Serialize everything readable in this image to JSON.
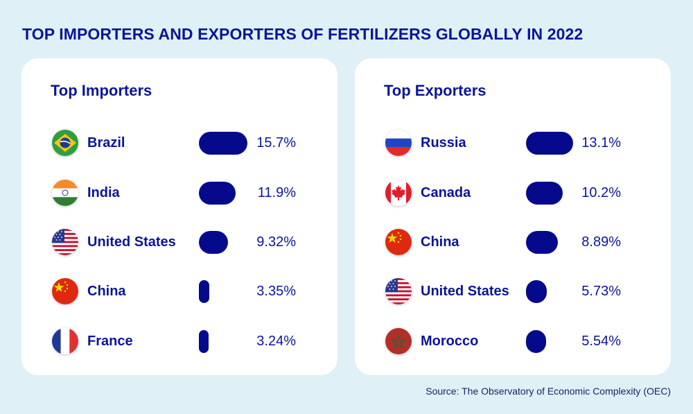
{
  "title": "TOP IMPORTERS AND EXPORTERS OF FERTILIZERS GLOBALLY IN 2022",
  "source": "Source: The Observatory of Economic Complexity (OEC)",
  "colors": {
    "bar": "#050a8c",
    "text": "#0b1499",
    "background": "#dff0f7",
    "card": "#ffffff"
  },
  "chart_data": [
    {
      "type": "bar",
      "title": "Top Importers",
      "categories": [
        "Brazil",
        "India",
        "United States",
        "China",
        "France"
      ],
      "values": [
        15.7,
        11.9,
        9.32,
        3.35,
        3.24
      ],
      "labels": [
        "15.7%",
        "11.9%",
        "9.32%",
        "3.35%",
        "3.24%"
      ],
      "flags": [
        "brazil-flag-icon",
        "india-flag-icon",
        "usa-flag-icon",
        "china-flag-icon",
        "france-flag-icon"
      ]
    },
    {
      "type": "bar",
      "title": "Top Exporters",
      "categories": [
        "Russia",
        "Canada",
        "China",
        "United States",
        "Morocco"
      ],
      "values": [
        13.1,
        10.2,
        8.89,
        5.73,
        5.54
      ],
      "labels": [
        "13.1%",
        "10.2%",
        "8.89%",
        "5.73%",
        "5.54%"
      ],
      "flags": [
        "russia-flag-icon",
        "canada-flag-icon",
        "china-flag-icon",
        "usa-flag-icon",
        "morocco-flag-icon"
      ]
    }
  ]
}
